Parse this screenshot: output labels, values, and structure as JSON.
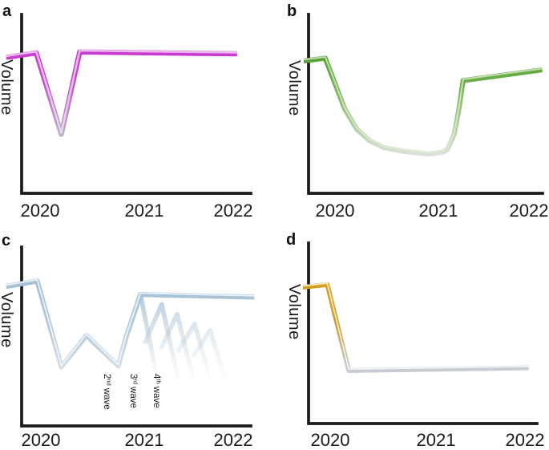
{
  "panels": {
    "a": {
      "label": "a",
      "ylabel": "Volume",
      "xticks": [
        "2020",
        "2021",
        "2022"
      ]
    },
    "b": {
      "label": "b",
      "ylabel": "Volume",
      "xticks": [
        "2020",
        "2021",
        "2022"
      ]
    },
    "c": {
      "label": "c",
      "ylabel": "Volume",
      "xticks": [
        "2020",
        "2021",
        "2022"
      ],
      "waves": [
        {
          "num": "2",
          "sup": "nd",
          "word": "wave"
        },
        {
          "num": "3",
          "sup": "rd",
          "word": "wave"
        },
        {
          "num": "4",
          "sup": "th",
          "word": "wave"
        }
      ]
    },
    "d": {
      "label": "d",
      "ylabel": "Volume",
      "xticks": [
        "2020",
        "2021",
        "2022"
      ]
    }
  },
  "colors": {
    "axis": "#1a1a1a",
    "text": "#1a1a1a",
    "a_main": "#c43bca",
    "a_fade": "#b7bac3",
    "b_main": "#60a43e",
    "b_fade": "#dfe3df",
    "c_main": "#a3bfd6",
    "c_fade": "#d9dfe4",
    "d_main": "#d7a11a",
    "d_fade": "#c6ccd2"
  },
  "chart_data": [
    {
      "panel": "a",
      "type": "line",
      "ylabel": "Volume",
      "xticks": [
        2020,
        2021,
        2022
      ],
      "ylim": [
        0,
        100
      ],
      "x": [
        2019.65,
        2019.96,
        2020.22,
        2020.41,
        2022.04
      ],
      "y": [
        76,
        78.5,
        33,
        79,
        78
      ],
      "line_color": "#c43bca",
      "fade_color": "#b7bac3",
      "description": "sharp V-shaped dip to about one-third volume in spring 2020, immediate full recovery, flat through 2022"
    },
    {
      "panel": "b",
      "type": "line",
      "ylabel": "Volume",
      "xticks": [
        2020,
        2021,
        2022
      ],
      "ylim": [
        0,
        100
      ],
      "x": [
        2019.68,
        2019.9,
        2020.1,
        2020.22,
        2020.35,
        2020.5,
        2020.7,
        2020.95,
        2021.1,
        2021.15,
        2021.22,
        2021.27,
        2021.31,
        2022.12
      ],
      "y": [
        74,
        75.5,
        47,
        36,
        29.5,
        25.5,
        23.5,
        22,
        23,
        24.5,
        33,
        48,
        63,
        69
      ],
      "line_color": "#60a43e",
      "fade_color": "#dfe3df",
      "description": "prolonged U-shaped trough through 2020, steep recovery in early-mid 2021, gradual rise to 2022"
    },
    {
      "panel": "c",
      "type": "line",
      "ylabel": "Volume",
      "xticks": [
        2020,
        2021,
        2022
      ],
      "ylim": [
        0,
        100
      ],
      "x": [
        2019.65,
        2019.97,
        2020.22,
        2020.48,
        2020.81,
        2020.89,
        2021.04,
        2022.22
      ],
      "y": [
        78,
        81,
        33,
        50.5,
        33.5,
        49.5,
        73.5,
        72
      ],
      "line_color": "#a3bfd6",
      "fade_color": "#d9dfe4",
      "ghost_branches": [
        {
          "points": [
            [
              2021.04,
              73.5
            ],
            [
              2021.21,
              27
            ]
          ]
        },
        {
          "points": [
            [
              2021.08,
              46
            ],
            [
              2021.26,
              68
            ],
            [
              2021.43,
              26
            ]
          ]
        },
        {
          "points": [
            [
              2021.25,
              43
            ],
            [
              2021.42,
              62.5
            ],
            [
              2021.59,
              25
            ]
          ]
        },
        {
          "points": [
            [
              2021.42,
              41
            ],
            [
              2021.6,
              57
            ],
            [
              2021.77,
              24
            ]
          ]
        },
        {
          "points": [
            [
              2021.58,
              38.5
            ],
            [
              2021.76,
              53.5
            ],
            [
              2021.93,
              23
            ]
          ]
        }
      ],
      "wave_annotations": [
        {
          "label": "2nd wave",
          "x": 2020.7
        },
        {
          "label": "3rd wave",
          "x": 2020.98
        },
        {
          "label": "4th wave",
          "x": 2021.22
        }
      ],
      "description": "repeated dips (waves) through 2020, recovery to plateau in 2021 with fading hypothetical 3rd/4th wave branches"
    },
    {
      "panel": "d",
      "type": "line",
      "ylabel": "Volume",
      "xticks": [
        2020,
        2021,
        2022
      ],
      "ylim": [
        0,
        100
      ],
      "x": [
        2019.72,
        2019.97,
        2020.19,
        2022.03
      ],
      "y": [
        74.5,
        76,
        29,
        30.5
      ],
      "line_color": "#d7a11a",
      "fade_color": "#c6ccd2",
      "description": "steep drop in spring 2020 to ~30% volume with no recovery through 2022"
    }
  ]
}
